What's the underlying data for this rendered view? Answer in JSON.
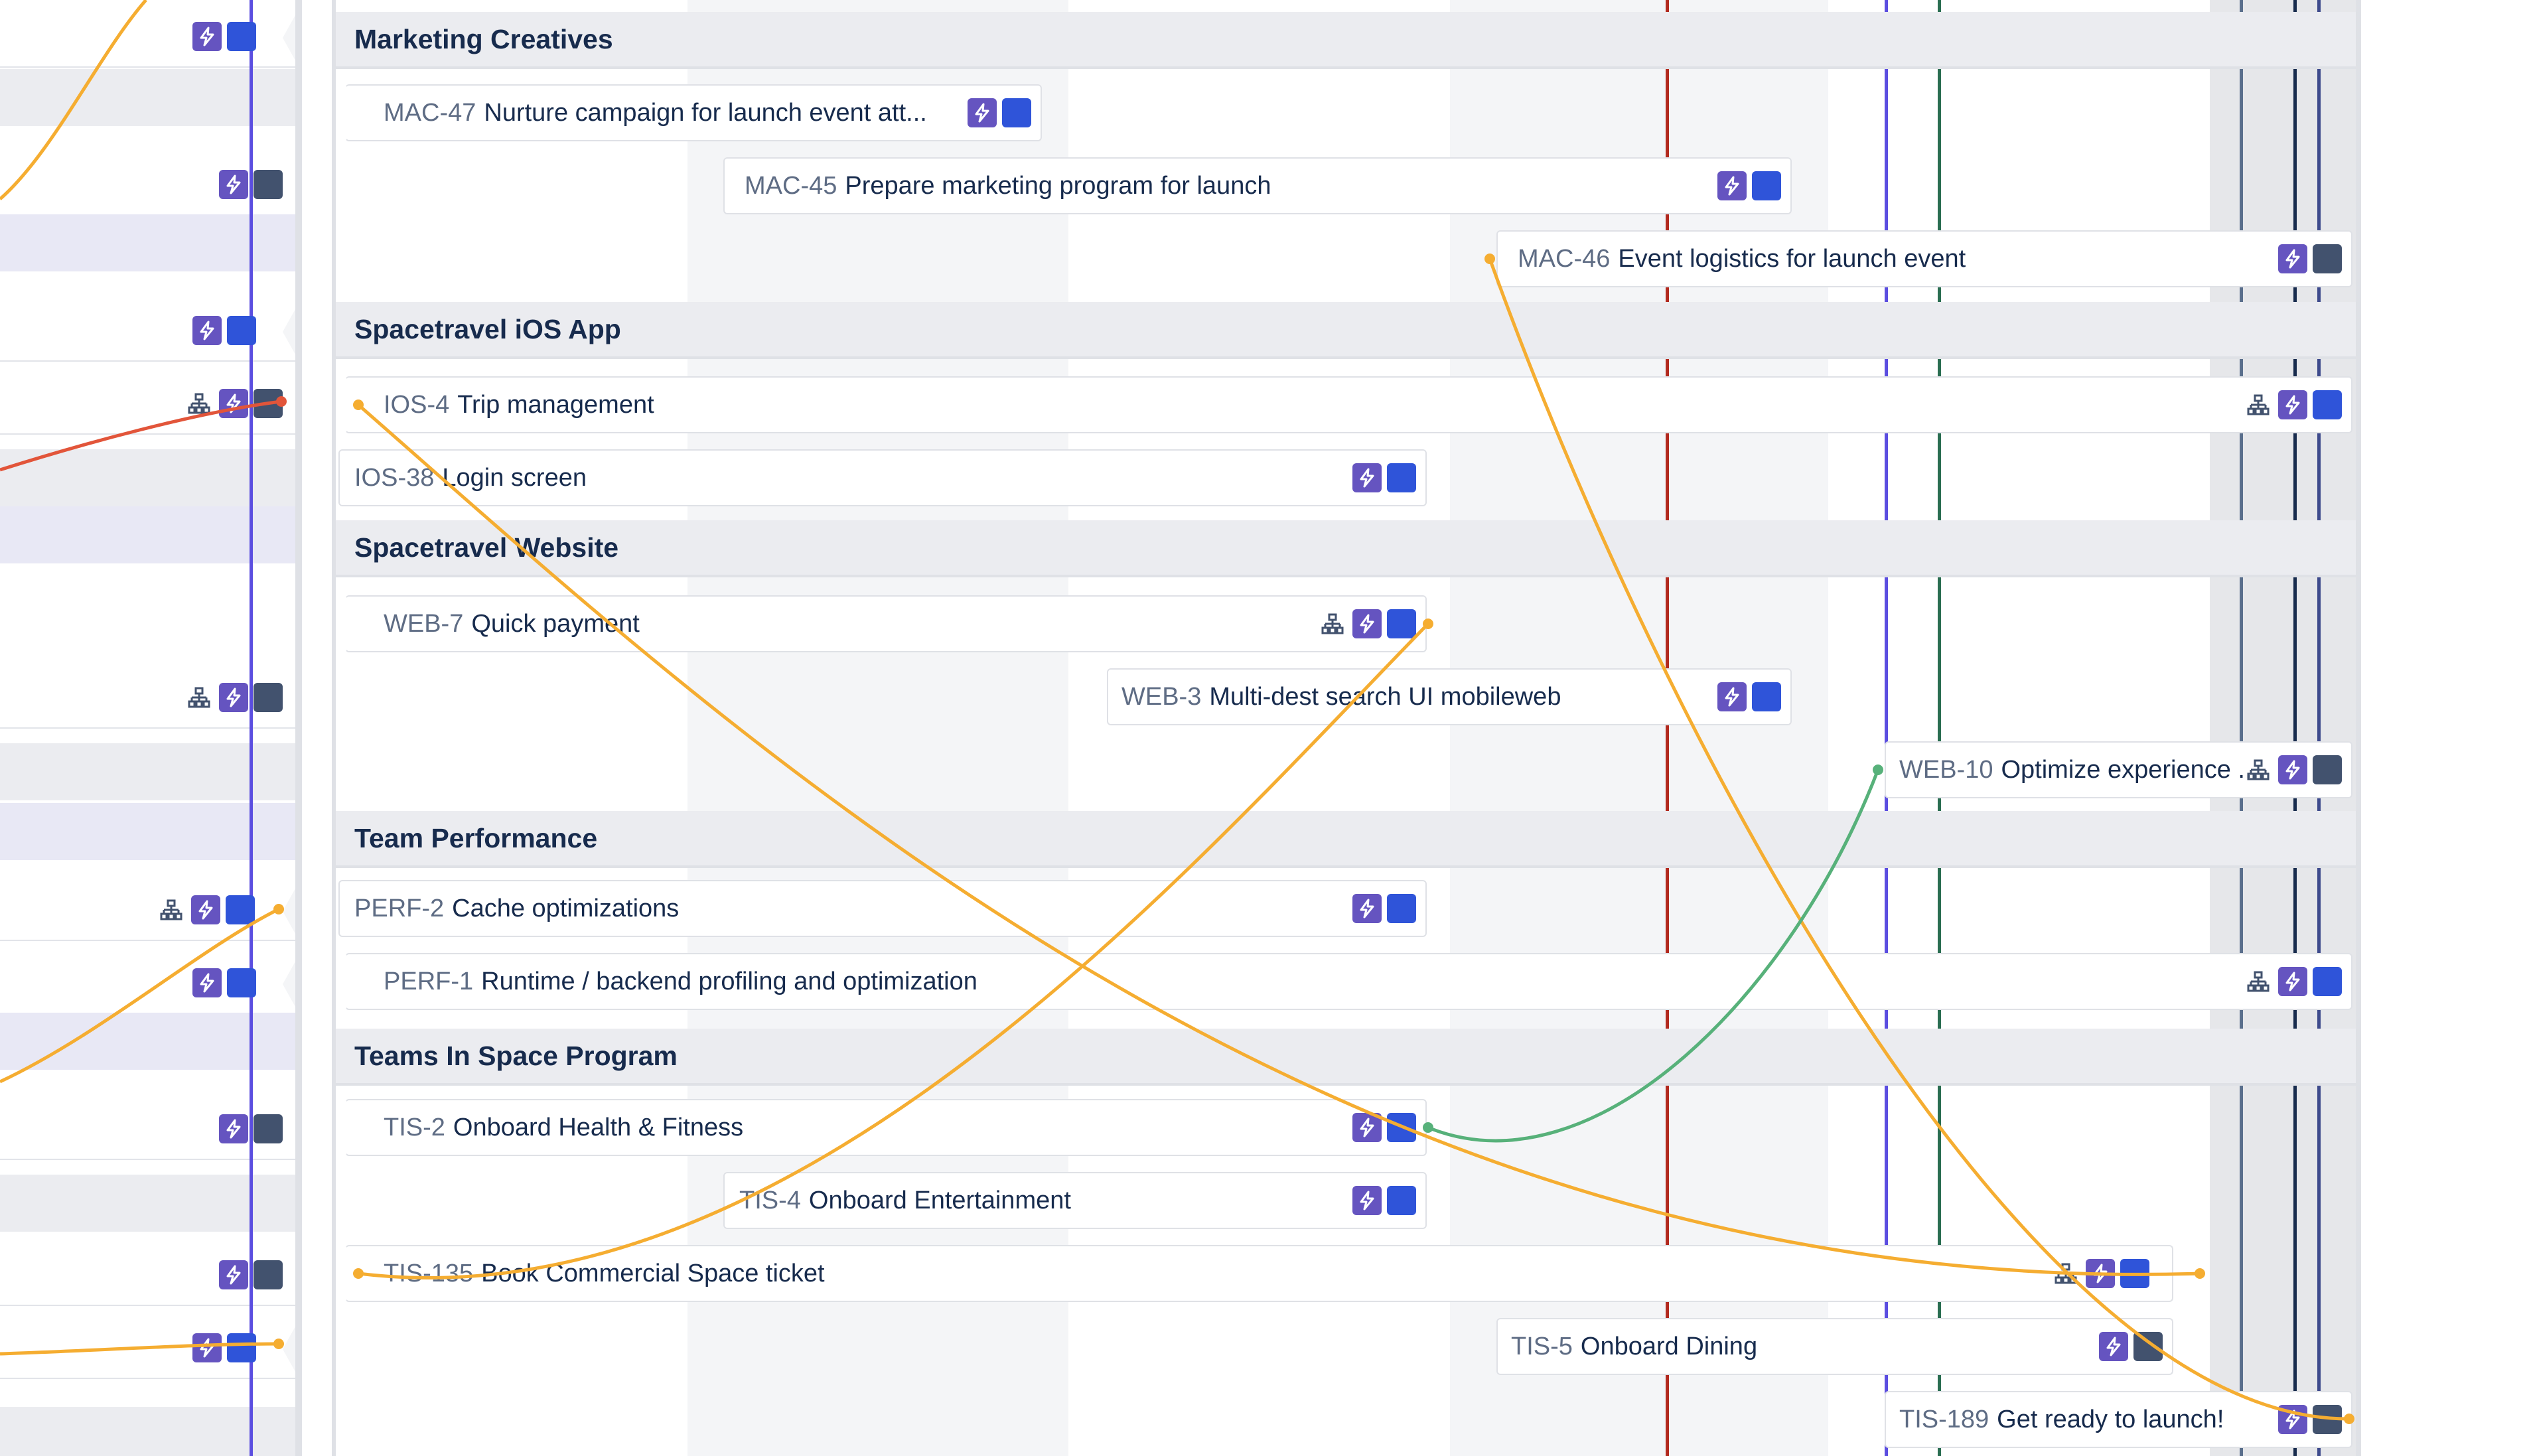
{
  "colors": {
    "epic_icon": "#6554c0",
    "status_blue": "#2f54d9",
    "status_gray": "#42526e",
    "dependency_orange": "#f5ad31",
    "dependency_green": "#57b17a",
    "dependency_red": "#e2553a",
    "marker_red": "#b22a1f",
    "marker_purple": "#5b4ee0",
    "marker_green": "#2b6e52",
    "marker_black": "#172b4d"
  },
  "icons": {
    "epic": "lightning-bolt-icon",
    "status": "status-square-icon",
    "hierarchy": "hierarchy-tree-icon"
  },
  "groups": [
    {
      "name": "Marketing Creatives",
      "issues": [
        {
          "key": "MAC-47",
          "summary": "Nurture campaign for launch event att..."
        },
        {
          "key": "MAC-45",
          "summary": "Prepare marketing program for launch"
        },
        {
          "key": "MAC-46",
          "summary": "Event logistics for launch event"
        }
      ]
    },
    {
      "name": "Spacetravel iOS App",
      "issues": [
        {
          "key": "IOS-4",
          "summary": "Trip management"
        },
        {
          "key": "IOS-38",
          "summary": "Login screen"
        }
      ]
    },
    {
      "name": "Spacetravel Website",
      "issues": [
        {
          "key": "WEB-7",
          "summary": "Quick payment"
        },
        {
          "key": "WEB-3",
          "summary": "Multi-dest search UI mobileweb"
        },
        {
          "key": "WEB-10",
          "summary": "Optimize experience ..."
        }
      ]
    },
    {
      "name": "Team Performance",
      "issues": [
        {
          "key": "PERF-2",
          "summary": "Cache optimizations"
        },
        {
          "key": "PERF-1",
          "summary": "Runtime / backend profiling and optimization"
        }
      ]
    },
    {
      "name": "Teams In Space Program",
      "issues": [
        {
          "key": "TIS-2",
          "summary": "Onboard Health & Fitness"
        },
        {
          "key": "TIS-4",
          "summary": "Onboard Entertainment"
        },
        {
          "key": "TIS-135",
          "summary": "Book Commercial Space ticket"
        },
        {
          "key": "TIS-5",
          "summary": "Onboard Dining"
        },
        {
          "key": "TIS-189",
          "summary": "Get ready to launch!"
        }
      ]
    }
  ]
}
